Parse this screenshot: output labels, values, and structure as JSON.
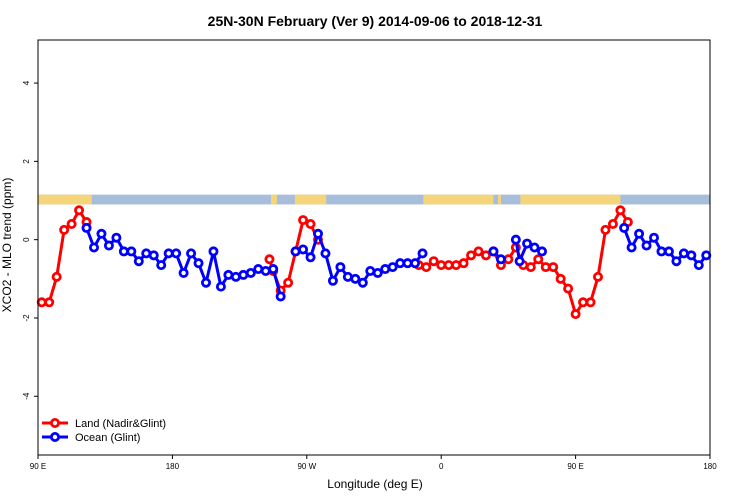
{
  "chart_data": {
    "type": "line",
    "title": "25N-30N February (Ver 9)   2014-09-06 to 2018-12-31",
    "xlabel": "Longitude (deg E)",
    "ylabel": "XCO2 - MLO trend (ppm)",
    "xlim": [
      90,
      540
    ],
    "ylim": [
      -5.5,
      5.1
    ],
    "x_ticks": [
      {
        "value": 90,
        "label": "90 E"
      },
      {
        "value": 180,
        "label": "180"
      },
      {
        "value": 270,
        "label": "90 W"
      },
      {
        "value": 360,
        "label": "0"
      },
      {
        "value": 450,
        "label": "90 E"
      },
      {
        "value": 540,
        "label": "180"
      }
    ],
    "y_ticks": [
      {
        "value": -4,
        "label": "-4"
      },
      {
        "value": -2,
        "label": "-2"
      },
      {
        "value": 0,
        "label": "0"
      },
      {
        "value": 2,
        "label": "2"
      },
      {
        "value": 4,
        "label": "4"
      }
    ],
    "landmask": {
      "y_range": [
        0.9,
        1.15
      ],
      "land_color": "#f5d57a",
      "ocean_color": "#a6bddb",
      "land_intervals": [
        [
          90,
          126
        ],
        [
          246,
          250
        ],
        [
          262,
          283
        ],
        [
          348,
          395
        ],
        [
          398,
          400
        ],
        [
          413,
          480
        ]
      ]
    },
    "legend": {
      "placement": "bottom-left",
      "entries": [
        {
          "name": "Land (Nadir&Glint)",
          "color": "#ff0000"
        },
        {
          "name": "Ocean (Glint)",
          "color": "#0000ff"
        }
      ]
    },
    "series": [
      {
        "name": "Land (Nadir&Glint)",
        "color": "#ff0000",
        "segments": [
          [
            [
              92.5,
              -1.6
            ],
            [
              97.5,
              -1.6
            ],
            [
              102.5,
              -0.95
            ],
            [
              107.5,
              0.25
            ],
            [
              112.5,
              0.4
            ],
            [
              117.5,
              0.75
            ],
            [
              122.5,
              0.45
            ]
          ],
          [
            [
              245,
              -0.5
            ],
            [
              247.5,
              -0.8
            ],
            [
              252.5,
              -1.3
            ],
            [
              257.5,
              -1.1
            ],
            [
              262.5,
              -0.3
            ],
            [
              267.5,
              0.5
            ],
            [
              272.5,
              0.4
            ],
            [
              277.5,
              0.0
            ]
          ],
          [
            [
              345,
              -0.65
            ],
            [
              350,
              -0.7
            ],
            [
              355,
              -0.55
            ],
            [
              360,
              -0.65
            ],
            [
              365,
              -0.65
            ],
            [
              370,
              -0.65
            ],
            [
              375,
              -0.6
            ],
            [
              380,
              -0.4
            ],
            [
              385,
              -0.3
            ],
            [
              390,
              -0.4
            ],
            [
              395,
              -0.3
            ],
            [
              400,
              -0.65
            ],
            [
              405,
              -0.5
            ],
            [
              410,
              -0.2
            ],
            [
              415,
              -0.65
            ],
            [
              420,
              -0.7
            ],
            [
              425,
              -0.5
            ],
            [
              430,
              -0.7
            ],
            [
              435,
              -0.7
            ],
            [
              440,
              -1.0
            ],
            [
              445,
              -1.25
            ],
            [
              450,
              -1.9
            ],
            [
              455,
              -1.6
            ],
            [
              460,
              -1.6
            ],
            [
              465,
              -0.95
            ],
            [
              470,
              0.25
            ],
            [
              475,
              0.4
            ],
            [
              480,
              0.75
            ],
            [
              485,
              0.45
            ]
          ]
        ]
      },
      {
        "name": "Ocean (Glint)",
        "color": "#0000ff",
        "segments": [
          [
            [
              122.5,
              0.3
            ],
            [
              127.5,
              -0.2
            ],
            [
              132.5,
              0.15
            ],
            [
              137.5,
              -0.15
            ],
            [
              142.5,
              0.05
            ],
            [
              147.5,
              -0.3
            ],
            [
              152.5,
              -0.3
            ],
            [
              157.5,
              -0.55
            ],
            [
              162.5,
              -0.35
            ],
            [
              167.5,
              -0.4
            ],
            [
              172.5,
              -0.65
            ],
            [
              177.5,
              -0.35
            ],
            [
              182.5,
              -0.35
            ],
            [
              187.5,
              -0.85
            ],
            [
              192.5,
              -0.35
            ],
            [
              197.5,
              -0.6
            ],
            [
              202.5,
              -1.1
            ],
            [
              207.5,
              -0.3
            ],
            [
              212.5,
              -1.2
            ],
            [
              217.5,
              -0.9
            ],
            [
              222.5,
              -0.95
            ],
            [
              227.5,
              -0.9
            ],
            [
              232.5,
              -0.85
            ],
            [
              237.5,
              -0.75
            ],
            [
              242.5,
              -0.8
            ],
            [
              247.5,
              -0.75
            ],
            [
              252.5,
              -1.45
            ]
          ],
          [
            [
              262.5,
              -0.3
            ],
            [
              267.5,
              -0.25
            ],
            [
              272.5,
              -0.45
            ],
            [
              277.5,
              0.15
            ],
            [
              282.5,
              -0.35
            ],
            [
              287.5,
              -1.05
            ],
            [
              292.5,
              -0.7
            ],
            [
              297.5,
              -0.95
            ],
            [
              302.5,
              -1.0
            ],
            [
              307.5,
              -1.1
            ],
            [
              312.5,
              -0.8
            ],
            [
              317.5,
              -0.85
            ],
            [
              322.5,
              -0.75
            ],
            [
              327.5,
              -0.7
            ],
            [
              332.5,
              -0.6
            ],
            [
              337.5,
              -0.6
            ],
            [
              342.5,
              -0.6
            ],
            [
              347.5,
              -0.35
            ]
          ],
          [
            [
              395,
              -0.3
            ],
            [
              400,
              -0.5
            ]
          ],
          [
            [
              410,
              0.0
            ],
            [
              412.5,
              -0.55
            ],
            [
              417.5,
              -0.1
            ],
            [
              422.5,
              -0.2
            ],
            [
              427.5,
              -0.3
            ]
          ],
          [
            [
              482.5,
              0.3
            ],
            [
              487.5,
              -0.2
            ],
            [
              492.5,
              0.15
            ],
            [
              497.5,
              -0.15
            ],
            [
              502.5,
              0.05
            ],
            [
              507.5,
              -0.3
            ],
            [
              512.5,
              -0.3
            ],
            [
              517.5,
              -0.55
            ],
            [
              522.5,
              -0.35
            ],
            [
              527.5,
              -0.4
            ],
            [
              532.5,
              -0.65
            ],
            [
              537.5,
              -0.4
            ]
          ]
        ]
      }
    ]
  }
}
